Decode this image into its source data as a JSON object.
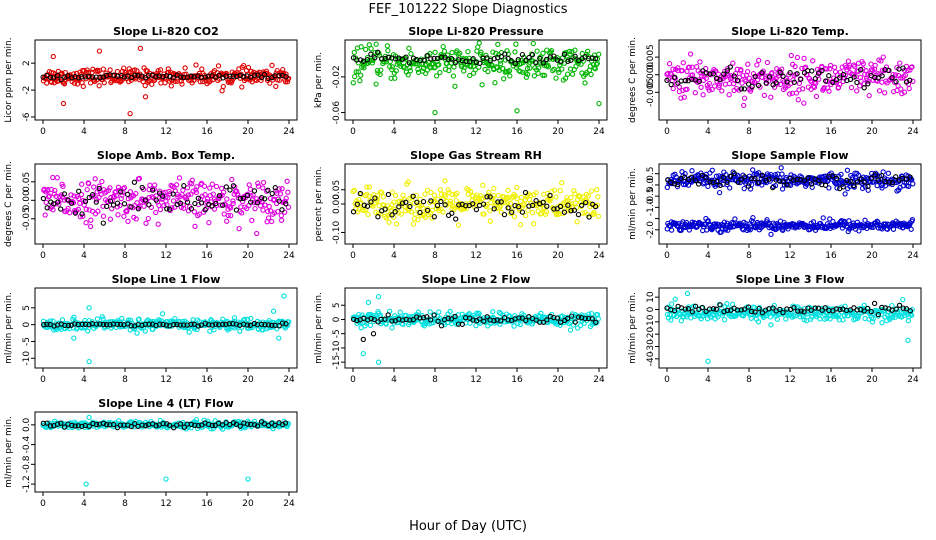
{
  "page": {
    "title": "FEF_101222  Slope Diagnostics",
    "xlabel": "Hour of Day (UTC)"
  },
  "chart_data": [
    {
      "type": "scatter",
      "title": "Slope Li-820 CO2",
      "ylabel": "Licor ppm per min.",
      "xlim": [
        0,
        24
      ],
      "xticks": [
        "0",
        "4",
        "8",
        "12",
        "16",
        "20",
        "24"
      ],
      "ylim": [
        -6,
        5
      ],
      "yticks": [
        -6,
        -2,
        2
      ],
      "ytick_labels": [
        "-6",
        "-2",
        "2"
      ],
      "series": [
        {
          "color": "#e00000",
          "center": 0,
          "spread": 1.0,
          "outliers": [
            [
              1,
              3
            ],
            [
              5.5,
              3.8
            ],
            [
              9.5,
              4.2
            ],
            [
              8.5,
              -5.5
            ],
            [
              2,
              -4
            ],
            [
              10,
              -3
            ]
          ]
        },
        {
          "color": "#000000",
          "center": 0,
          "spread": 0.25,
          "outliers": []
        }
      ]
    },
    {
      "type": "scatter",
      "title": "Slope Li-820 Pressure",
      "ylabel": "kPa per min.",
      "xlim": [
        0,
        24
      ],
      "xticks": [
        "0",
        "4",
        "8",
        "12",
        "16",
        "20",
        "24"
      ],
      "ylim": [
        -0.065,
        0.018
      ],
      "yticks": [
        -0.06,
        -0.02
      ],
      "ytick_labels": [
        "-0.06",
        "-0.02"
      ],
      "series": [
        {
          "color": "#00b400",
          "center": -0.005,
          "spread": 0.015,
          "outliers": [
            [
              8,
              -0.06
            ],
            [
              16,
              -0.058
            ],
            [
              24,
              -0.05
            ]
          ]
        },
        {
          "color": "#000000",
          "center": 0,
          "spread": 0.004,
          "outliers": []
        }
      ]
    },
    {
      "type": "scatter",
      "title": "Slope Li-820 Temp.",
      "ylabel": "degrees C per min.",
      "xlim": [
        0,
        24
      ],
      "xticks": [
        "0",
        "4",
        "8",
        "12",
        "16",
        "20",
        "24"
      ],
      "ylim": [
        -0.012,
        0.009
      ],
      "yticks": [
        -0.005,
        0,
        0.005
      ],
      "ytick_labels": [
        "-0.005",
        "0.000",
        "0.005"
      ],
      "series": [
        {
          "color": "#e000e0",
          "center": -0.001,
          "spread": 0.0045,
          "outliers": []
        },
        {
          "color": "#000000",
          "center": -0.001,
          "spread": 0.0025,
          "outliers": []
        }
      ]
    },
    {
      "type": "scatter",
      "title": "Slope Amb. Box Temp.",
      "ylabel": "degrees C per min.",
      "xlim": [
        0,
        24
      ],
      "xticks": [
        "0",
        "4",
        "8",
        "12",
        "16",
        "20",
        "24"
      ],
      "ylim": [
        -0.11,
        0.09
      ],
      "yticks": [
        -0.05,
        0,
        0.05
      ],
      "ytick_labels": [
        "-0.05",
        "0.00",
        "0.05"
      ],
      "series": [
        {
          "color": "#e000e0",
          "center": 0,
          "spread": 0.045,
          "outliers": []
        },
        {
          "color": "#000000",
          "center": 0,
          "spread": 0.035,
          "outliers": []
        }
      ]
    },
    {
      "type": "scatter",
      "title": "Slope Gas Stream RH",
      "ylabel": "percent per min.",
      "xlim": [
        0,
        24
      ],
      "xticks": [
        "0",
        "4",
        "8",
        "12",
        "16",
        "20",
        "24"
      ],
      "ylim": [
        -0.13,
        0.13
      ],
      "yticks": [
        -0.1,
        0,
        0.05
      ],
      "ytick_labels": [
        "-0.10",
        "0.00",
        "0.05"
      ],
      "series": [
        {
          "color": "#f0f000",
          "center": 0,
          "spread": 0.05,
          "outliers": []
        },
        {
          "color": "#000000",
          "center": -0.01,
          "spread": 0.04,
          "outliers": []
        }
      ]
    },
    {
      "type": "scatter",
      "title": "Slope Sample Flow",
      "ylabel": "ml/min per min.",
      "xlim": [
        0,
        24
      ],
      "xticks": [
        "0",
        "4",
        "8",
        "12",
        "16",
        "20",
        "24"
      ],
      "ylim": [
        -2.5,
        0.8
      ],
      "yticks": [
        -2,
        -1.5,
        -1,
        -0.5,
        0,
        0.5
      ],
      "ytick_labels": [
        "-2.0",
        "",
        "-1.0",
        "-0.5",
        "0.0",
        "0.5"
      ],
      "series": [
        {
          "color": "#0000d0",
          "center": 0.2,
          "spread": 0.3,
          "outliers": []
        },
        {
          "color": "#0000d0",
          "center": -1.8,
          "spread": 0.2,
          "outliers": []
        },
        {
          "color": "#000000",
          "center": 0.2,
          "spread": 0.2,
          "outliers": []
        }
      ]
    },
    {
      "type": "scatter",
      "title": "Slope Line 1 Flow",
      "ylabel": "ml/min per min.",
      "xlim": [
        0,
        24
      ],
      "xticks": [
        "0",
        "4",
        "8",
        "12",
        "16",
        "20",
        "24"
      ],
      "ylim": [
        -12,
        10
      ],
      "yticks": [
        -10,
        -5,
        0,
        5
      ],
      "ytick_labels": [
        "-10",
        "-5",
        "0",
        "5"
      ],
      "series": [
        {
          "color": "#00e0e0",
          "center": 0,
          "spread": 1.5,
          "outliers": [
            [
              3,
              -4
            ],
            [
              4.5,
              -11
            ],
            [
              4.5,
              5
            ],
            [
              23.5,
              8.5
            ],
            [
              23,
              -4
            ],
            [
              22.5,
              4
            ]
          ]
        },
        {
          "color": "#000000",
          "center": 0,
          "spread": 0.3,
          "outliers": []
        }
      ]
    },
    {
      "type": "scatter",
      "title": "Slope Line 2 Flow",
      "ylabel": "ml/min per min.",
      "xlim": [
        0,
        24
      ],
      "xticks": [
        "0",
        "4",
        "8",
        "12",
        "16",
        "20",
        "24"
      ],
      "ylim": [
        -16,
        10
      ],
      "yticks": [
        -15,
        -10,
        -5,
        0,
        5
      ],
      "ytick_labels": [
        "-15",
        "-10",
        "-5",
        "0",
        "5"
      ],
      "series": [
        {
          "color": "#00e0e0",
          "center": 0,
          "spread": 2.0,
          "outliers": [
            [
              1,
              -12
            ],
            [
              2.5,
              -15
            ],
            [
              2.5,
              8
            ],
            [
              1.5,
              6
            ]
          ]
        },
        {
          "color": "#000000",
          "center": 0,
          "spread": 1.2,
          "outliers": [
            [
              1,
              -7
            ],
            [
              2,
              -5
            ]
          ]
        }
      ]
    },
    {
      "type": "scatter",
      "title": "Slope Line 3 Flow",
      "ylabel": "ml/min per min.",
      "xlim": [
        0,
        24
      ],
      "xticks": [
        "0",
        "4",
        "8",
        "12",
        "16",
        "20",
        "24"
      ],
      "ylim": [
        -45,
        15
      ],
      "yticks": [
        -40,
        -30,
        -20,
        -10,
        0,
        10
      ],
      "ytick_labels": [
        "-40",
        "-30",
        "-20",
        "-10",
        "0",
        "10"
      ],
      "series": [
        {
          "color": "#00e0e0",
          "center": -3,
          "spread": 5,
          "outliers": [
            [
              4,
              -42
            ],
            [
              2,
              13
            ],
            [
              23.5,
              -25
            ],
            [
              23,
              8
            ]
          ]
        },
        {
          "color": "#000000",
          "center": 0,
          "spread": 2.5,
          "outliers": []
        }
      ]
    },
    {
      "type": "scatter",
      "title": "Slope Line 4 (LT) Flow",
      "ylabel": "ml/min per min.",
      "xlim": [
        0,
        24
      ],
      "xticks": [
        "0",
        "4",
        "8",
        "12",
        "16",
        "20",
        "24"
      ],
      "ylim": [
        -1.3,
        0.2
      ],
      "yticks": [
        -1.2,
        -0.8,
        -0.4,
        0
      ],
      "ytick_labels": [
        "-1.2",
        "-0.8",
        "-0.4",
        "0.0"
      ],
      "series": [
        {
          "color": "#00e0e0",
          "center": 0,
          "spread": 0.06,
          "outliers": [
            [
              4.2,
              -1.2
            ],
            [
              12,
              -1.1
            ],
            [
              20,
              -1.1
            ],
            [
              4.5,
              0.15
            ]
          ]
        },
        {
          "color": "#000000",
          "center": 0,
          "spread": 0.04,
          "outliers": []
        }
      ]
    }
  ]
}
